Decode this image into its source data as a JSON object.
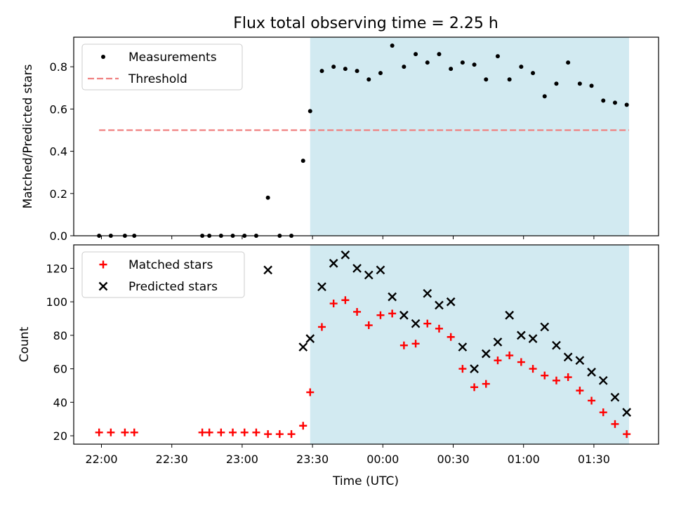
{
  "chart_data": [
    {
      "type": "scatter",
      "title": "Flux total observing time = 2.25 h",
      "xlabel": "",
      "ylabel": "Matched/Predicted stars",
      "ylim": [
        0,
        0.94
      ],
      "yticks": [
        "0.0",
        "0.2",
        "0.4",
        "0.6",
        "0.8"
      ],
      "grid": false,
      "legend_placement": "top-left",
      "highlight_span": {
        "start": "23:29",
        "end": "01:45",
        "color": "#add8e6"
      },
      "series": [
        {
          "name": "Measurements",
          "marker": "dot",
          "color": "#000000",
          "x": [
            "21:59",
            "22:04",
            "22:10",
            "22:14",
            "22:43",
            "22:46",
            "22:51",
            "22:56",
            "23:01",
            "23:06",
            "23:11",
            "23:16",
            "23:21",
            "23:26",
            "23:29",
            "23:34",
            "23:39",
            "23:44",
            "23:49",
            "23:54",
            "23:59",
            "00:04",
            "00:09",
            "00:14",
            "00:19",
            "00:24",
            "00:29",
            "00:34",
            "00:39",
            "00:44",
            "00:49",
            "00:54",
            "00:59",
            "01:04",
            "01:09",
            "01:14",
            "01:19",
            "01:24",
            "01:29",
            "01:34",
            "01:39",
            "01:44"
          ],
          "y": [
            0,
            0,
            0,
            0,
            0,
            0,
            0,
            0,
            0,
            0,
            0.18,
            0,
            0,
            0.355,
            0.59,
            0.78,
            0.8,
            0.79,
            0.78,
            0.74,
            0.77,
            0.9,
            0.8,
            0.86,
            0.82,
            0.86,
            0.79,
            0.82,
            0.81,
            0.74,
            0.85,
            0.74,
            0.8,
            0.77,
            0.66,
            0.72,
            0.82,
            0.72,
            0.71,
            0.64,
            0.63,
            0.62
          ]
        },
        {
          "name": "Threshold",
          "marker": "dashed-line",
          "color": "#f08080",
          "x": [
            "21:59",
            "01:45"
          ],
          "y": [
            0.5,
            0.5
          ]
        }
      ]
    },
    {
      "type": "scatter",
      "title": "",
      "xlabel": "Time (UTC)",
      "ylabel": "Count",
      "ylim": [
        15,
        134
      ],
      "yticks": [
        "20",
        "40",
        "60",
        "80",
        "100",
        "120"
      ],
      "xticks": [
        "22:00",
        "22:30",
        "23:00",
        "23:30",
        "00:00",
        "00:30",
        "01:00",
        "01:30"
      ],
      "grid": false,
      "legend_placement": "top-left",
      "highlight_span": {
        "start": "23:29",
        "end": "01:45",
        "color": "#add8e6"
      },
      "series": [
        {
          "name": "Matched stars",
          "marker": "plus",
          "color": "#ff0000",
          "x": [
            "21:59",
            "22:04",
            "22:10",
            "22:14",
            "22:43",
            "22:46",
            "22:51",
            "22:56",
            "23:01",
            "23:06",
            "23:11",
            "23:16",
            "23:21",
            "23:26",
            "23:29",
            "23:34",
            "23:39",
            "23:44",
            "23:49",
            "23:54",
            "23:59",
            "00:04",
            "00:09",
            "00:14",
            "00:19",
            "00:24",
            "00:29",
            "00:34",
            "00:39",
            "00:44",
            "00:49",
            "00:54",
            "00:59",
            "01:04",
            "01:09",
            "01:14",
            "01:19",
            "01:24",
            "01:29",
            "01:34",
            "01:39",
            "01:44"
          ],
          "y": [
            22,
            22,
            22,
            22,
            22,
            22,
            22,
            22,
            22,
            22,
            21,
            21,
            21,
            26,
            46,
            85,
            99,
            101,
            94,
            86,
            92,
            93,
            74,
            75,
            87,
            84,
            79,
            60,
            49,
            51,
            65,
            68,
            64,
            60,
            56,
            53,
            55,
            47,
            41,
            34,
            27,
            21
          ]
        },
        {
          "name": "Predicted stars",
          "marker": "x",
          "color": "#000000",
          "x": [
            "23:11",
            "23:26",
            "23:29",
            "23:34",
            "23:39",
            "23:44",
            "23:49",
            "23:54",
            "23:59",
            "00:04",
            "00:09",
            "00:14",
            "00:19",
            "00:24",
            "00:29",
            "00:34",
            "00:39",
            "00:44",
            "00:49",
            "00:54",
            "00:59",
            "01:04",
            "01:09",
            "01:14",
            "01:19",
            "01:24",
            "01:29",
            "01:34",
            "01:39",
            "01:44"
          ],
          "y": [
            119,
            73,
            78,
            109,
            123,
            128,
            120,
            116,
            119,
            103,
            92,
            87,
            105,
            98,
            100,
            73,
            60,
            69,
            76,
            92,
            80,
            78,
            85,
            74,
            67,
            65,
            58,
            53,
            43,
            34
          ]
        }
      ]
    }
  ]
}
